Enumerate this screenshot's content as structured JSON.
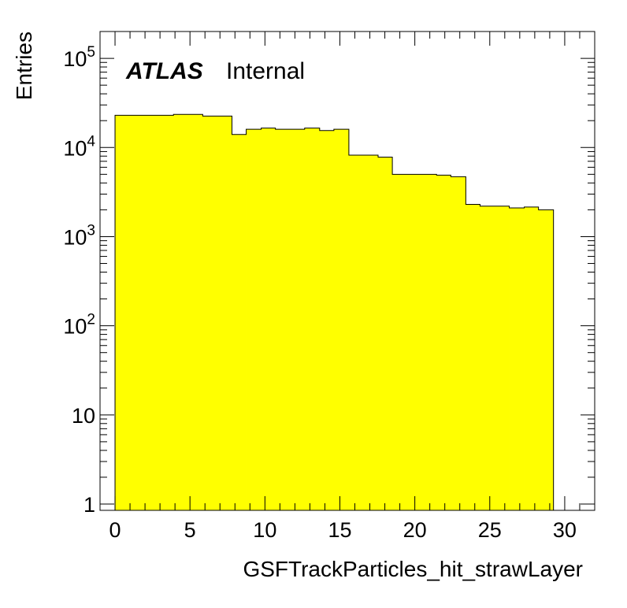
{
  "chart_data": {
    "type": "bar",
    "style": "filled-histogram",
    "fill_color": "#ffff00",
    "edge_color": "#000000",
    "label_main": "ATLAS",
    "label_sub": "Internal",
    "xlabel": "GSFTrackParticles_hit_strawLayer",
    "ylabel": "Entries",
    "xlim": [
      -1,
      32
    ],
    "ylim": [
      0.85,
      200000
    ],
    "y_scale": "log",
    "bin_edges": [
      0,
      1.95,
      3.9,
      5.85,
      7.8,
      8.75,
      9.75,
      10.7,
      11.7,
      12.65,
      13.65,
      14.6,
      15.6,
      16.55,
      17.55,
      18.5,
      19.5,
      20.45,
      21.45,
      22.4,
      23.4,
      24.35,
      25.35,
      26.3,
      27.3,
      28.25,
      29.25
    ],
    "values": [
      23000,
      23000,
      23500,
      22500,
      14000,
      16000,
      16500,
      16000,
      16000,
      16500,
      15500,
      16000,
      8200,
      8200,
      7800,
      5000,
      5000,
      5000,
      4900,
      4700,
      2300,
      2200,
      2200,
      2100,
      2150,
      2000
    ],
    "x_ticks": [
      "0",
      "5",
      "10",
      "15",
      "20",
      "25",
      "30"
    ],
    "x_tick_values": [
      0,
      5,
      10,
      15,
      20,
      25,
      30
    ],
    "y_ticks": [
      {
        "value": 1,
        "base": "1",
        "exp": ""
      },
      {
        "value": 10,
        "base": "10",
        "exp": ""
      },
      {
        "value": 100,
        "base": "10",
        "exp": "2"
      },
      {
        "value": 1000,
        "base": "10",
        "exp": "3"
      },
      {
        "value": 10000,
        "base": "10",
        "exp": "4"
      },
      {
        "value": 100000,
        "base": "10",
        "exp": "5"
      }
    ]
  }
}
